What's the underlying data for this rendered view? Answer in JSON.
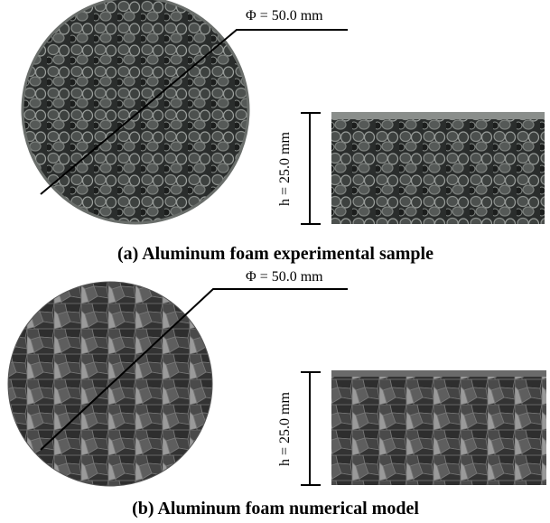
{
  "panels": [
    {
      "diameter_label": "Φ = 50.0 mm",
      "height_label": "h = 25.0 mm",
      "caption": "(a) Aluminum foam experimental sample"
    },
    {
      "diameter_label": "Φ = 50.0 mm",
      "height_label": "h = 25.0 mm",
      "caption": "(b) Aluminum foam numerical model"
    }
  ]
}
